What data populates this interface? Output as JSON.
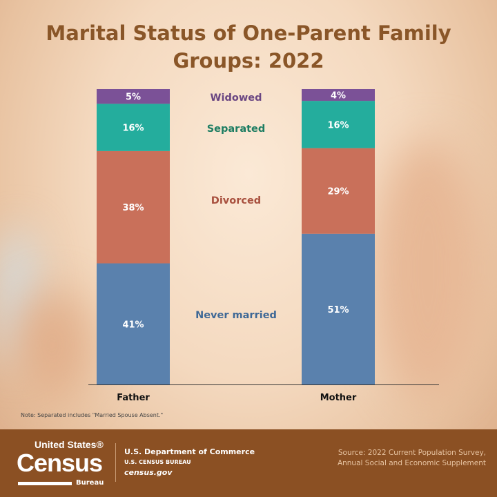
{
  "title_line1": "Marital Status of One-Parent Family",
  "title_line2": "Groups: 2022",
  "chart_data": {
    "type": "bar",
    "stacked": true,
    "title": "Marital Status of One-Parent Family Groups: 2022",
    "categories": [
      "Father",
      "Mother"
    ],
    "ylim": [
      0,
      100
    ],
    "grid": false,
    "legend": "center labels between bars",
    "series": [
      {
        "name": "Never married",
        "values": [
          41,
          51
        ],
        "color": "#5a81ad",
        "label_color": "#3e6896"
      },
      {
        "name": "Divorced",
        "values": [
          38,
          29
        ],
        "color": "#c9705a",
        "label_color": "#a8503e"
      },
      {
        "name": "Separated",
        "values": [
          16,
          16
        ],
        "color": "#24ad9d",
        "label_color": "#1d7d62"
      },
      {
        "name": "Widowed",
        "values": [
          5,
          4
        ],
        "color": "#7b5197",
        "label_color": "#6a4682"
      }
    ],
    "value_labels": {
      "Father": [
        "41%",
        "38%",
        "16%",
        "5%"
      ],
      "Mother": [
        "51%",
        "29%",
        "16%",
        "4%"
      ]
    }
  },
  "note": "Note: Separated includes \"Married Spouse Absent.\"",
  "footer": {
    "logo_text": "United States® Census Bureau",
    "logo_us": "United States®",
    "logo_census": "Census",
    "logo_bureau": "Bureau",
    "department": "U.S. Department of Commerce",
    "bureau": "U.S. CENSUS BUREAU",
    "website": "census.gov",
    "source_line1": "Source: 2022 Current Population Survey,",
    "source_line2": "Annual Social and Economic Supplement"
  }
}
